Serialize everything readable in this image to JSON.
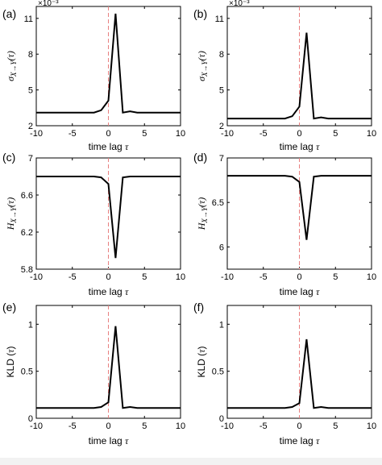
{
  "figure": {
    "background": "#ffffff",
    "line_color": "#000000",
    "ref_line_color": "#e88080"
  },
  "chart_data": [
    {
      "id": "a",
      "panel_label": "(a)",
      "type": "line",
      "ylabel": "σX→Y(τ)",
      "xlabel": "time lag τ",
      "xlim": [
        -10,
        10
      ],
      "ylim": [
        2,
        12
      ],
      "xticks": [
        -10,
        -5,
        0,
        5,
        10
      ],
      "xtick_labels": [
        "-10",
        "-5",
        "0",
        "5",
        "10"
      ],
      "yticks": [
        2,
        5,
        8,
        11
      ],
      "ytick_labels": [
        "2",
        "5",
        "8",
        "11"
      ],
      "y_exponent": "×10⁻³",
      "x": [
        -10,
        -9,
        -8,
        -7,
        -6,
        -5,
        -4,
        -3,
        -2,
        -1,
        0,
        1,
        2,
        3,
        4,
        5,
        6,
        7,
        8,
        9,
        10
      ],
      "y": [
        3.1,
        3.1,
        3.1,
        3.1,
        3.1,
        3.1,
        3.1,
        3.1,
        3.1,
        3.3,
        4.1,
        11.4,
        3.1,
        3.2,
        3.1,
        3.1,
        3.1,
        3.1,
        3.1,
        3.1,
        3.1
      ],
      "ref_line_x": 0
    },
    {
      "id": "b",
      "panel_label": "(b)",
      "type": "line",
      "ylabel": "σX→Y(τ)",
      "xlabel": "time lag τ",
      "xlim": [
        -10,
        10
      ],
      "ylim": [
        2,
        12
      ],
      "xticks": [
        -10,
        -5,
        0,
        5,
        10
      ],
      "xtick_labels": [
        "-10",
        "-5",
        "0",
        "5",
        "10"
      ],
      "yticks": [
        2,
        5,
        8,
        11
      ],
      "ytick_labels": [
        "2",
        "5",
        "8",
        "11"
      ],
      "y_exponent": "×10⁻³",
      "x": [
        -10,
        -9,
        -8,
        -7,
        -6,
        -5,
        -4,
        -3,
        -2,
        -1,
        0,
        1,
        2,
        3,
        4,
        5,
        6,
        7,
        8,
        9,
        10
      ],
      "y": [
        2.6,
        2.6,
        2.6,
        2.6,
        2.6,
        2.6,
        2.6,
        2.6,
        2.6,
        2.8,
        3.6,
        9.8,
        2.6,
        2.7,
        2.6,
        2.6,
        2.6,
        2.6,
        2.6,
        2.6,
        2.6
      ],
      "ref_line_x": 0
    },
    {
      "id": "c",
      "panel_label": "(c)",
      "type": "line",
      "ylabel": "HX→Y(τ)",
      "xlabel": "",
      "xlim": [
        -10,
        10
      ],
      "ylim": [
        5.8,
        7
      ],
      "xticks": [
        -10,
        -5,
        0,
        5,
        10
      ],
      "xtick_labels": [
        "-10",
        "-5",
        "0",
        "5",
        "10"
      ],
      "yticks": [
        5.8,
        6.2,
        6.6,
        7
      ],
      "ytick_labels": [
        "5.8",
        "6.2",
        "6.6",
        "7"
      ],
      "x": [
        -10,
        -9,
        -8,
        -7,
        -6,
        -5,
        -4,
        -3,
        -2,
        -1,
        0,
        1,
        2,
        3,
        4,
        5,
        6,
        7,
        8,
        9,
        10
      ],
      "y": [
        6.8,
        6.8,
        6.8,
        6.8,
        6.8,
        6.8,
        6.8,
        6.8,
        6.8,
        6.79,
        6.72,
        5.92,
        6.79,
        6.8,
        6.8,
        6.8,
        6.8,
        6.8,
        6.8,
        6.8,
        6.8
      ],
      "ref_line_x": 0
    },
    {
      "id": "d",
      "panel_label": "(d)",
      "type": "line",
      "ylabel": "HX→Y(τ)",
      "xlabel": "",
      "xlim": [
        -10,
        10
      ],
      "ylim": [
        5.75,
        7
      ],
      "xticks": [
        -10,
        -5,
        0,
        5,
        10
      ],
      "xtick_labels": [
        "-10",
        "-5",
        "0",
        "5",
        "10"
      ],
      "yticks": [
        6,
        6.5,
        7
      ],
      "ytick_labels": [
        "6",
        "6.5",
        "7"
      ],
      "x": [
        -10,
        -9,
        -8,
        -7,
        -6,
        -5,
        -4,
        -3,
        -2,
        -1,
        0,
        1,
        2,
        3,
        4,
        5,
        6,
        7,
        8,
        9,
        10
      ],
      "y": [
        6.8,
        6.8,
        6.8,
        6.8,
        6.8,
        6.8,
        6.8,
        6.8,
        6.8,
        6.79,
        6.73,
        6.08,
        6.79,
        6.8,
        6.8,
        6.8,
        6.8,
        6.8,
        6.8,
        6.8,
        6.8
      ],
      "ref_line_x": 0
    },
    {
      "id": "e",
      "panel_label": "(e)",
      "type": "line",
      "ylabel": "KLD (τ)",
      "xlabel": "time lag τ",
      "xlim": [
        -10,
        10
      ],
      "ylim": [
        0,
        1.2
      ],
      "xticks": [
        -10,
        -5,
        0,
        5,
        10
      ],
      "xtick_labels": [
        "-10",
        "-5",
        "0",
        "5",
        "10"
      ],
      "yticks": [
        0,
        0.5,
        1
      ],
      "ytick_labels": [
        "0",
        "0.5",
        "1"
      ],
      "x": [
        -10,
        -9,
        -8,
        -7,
        -6,
        -5,
        -4,
        -3,
        -2,
        -1,
        0,
        1,
        2,
        3,
        4,
        5,
        6,
        7,
        8,
        9,
        10
      ],
      "y": [
        0.11,
        0.11,
        0.11,
        0.11,
        0.11,
        0.11,
        0.11,
        0.11,
        0.11,
        0.12,
        0.17,
        0.98,
        0.11,
        0.12,
        0.11,
        0.11,
        0.11,
        0.11,
        0.11,
        0.11,
        0.11
      ],
      "ref_line_x": 0
    },
    {
      "id": "f",
      "panel_label": "(f)",
      "type": "line",
      "ylabel": "KLD (τ)",
      "xlabel": "time lag τ",
      "xlim": [
        -10,
        10
      ],
      "ylim": [
        0,
        1.2
      ],
      "xticks": [
        -10,
        -5,
        0,
        5,
        10
      ],
      "xtick_labels": [
        "-10",
        "-5",
        "0",
        "5",
        "10"
      ],
      "yticks": [
        0,
        0.5,
        1
      ],
      "ytick_labels": [
        "0",
        "0.5",
        "1"
      ],
      "x": [
        -10,
        -9,
        -8,
        -7,
        -6,
        -5,
        -4,
        -3,
        -2,
        -1,
        0,
        1,
        2,
        3,
        4,
        5,
        6,
        7,
        8,
        9,
        10
      ],
      "y": [
        0.11,
        0.11,
        0.11,
        0.11,
        0.11,
        0.11,
        0.11,
        0.11,
        0.11,
        0.12,
        0.16,
        0.84,
        0.11,
        0.12,
        0.11,
        0.11,
        0.11,
        0.11,
        0.11,
        0.11,
        0.11
      ],
      "ref_line_x": 0
    }
  ]
}
